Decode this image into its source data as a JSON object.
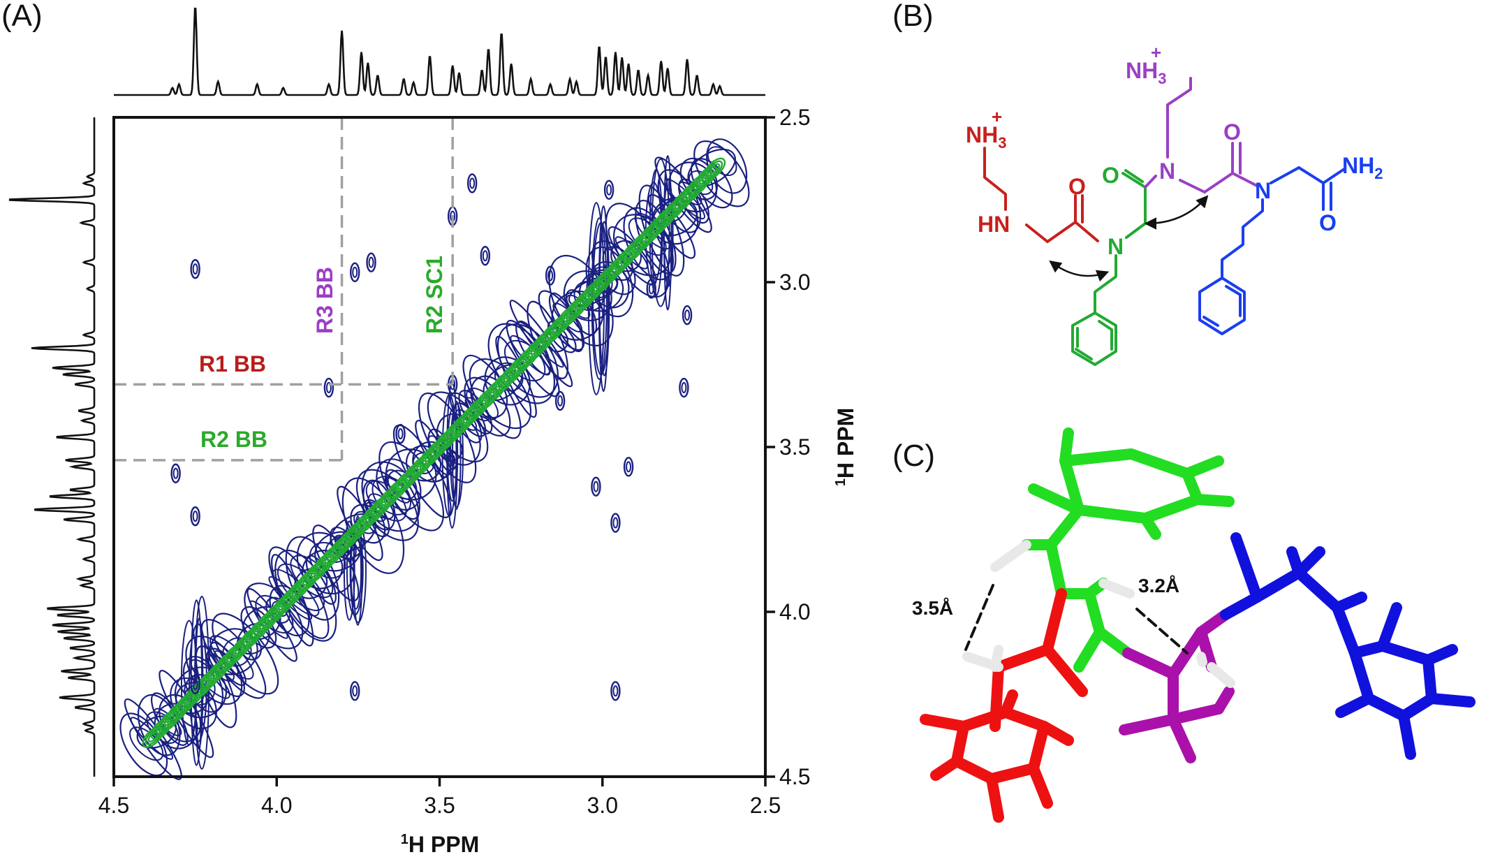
{
  "panels": {
    "a": {
      "letter": "(A)",
      "x_axis_title": {
        "sup": "1",
        "main": "H PPM"
      },
      "y_axis_title": {
        "sup": "1",
        "main": "H PPM"
      },
      "x_ticks": [
        "4.5",
        "4.0",
        "3.5",
        "3.0",
        "2.5"
      ],
      "y_ticks": [
        "2.5",
        "3.0",
        "3.5",
        "4.0",
        "4.5"
      ],
      "labels": {
        "r1_bb": "R1 BB",
        "r2_bb": "R2 BB",
        "r3_bb": "R3 BB",
        "r2_sc1": "R2 SC1"
      }
    },
    "b": {
      "letter": "(B)",
      "atoms": {
        "nh3_top": "NH",
        "nh3_top_sub": "3",
        "nh3_top_charge": "+",
        "nh3_left": "NH",
        "nh3_left_sub": "3",
        "nh3_left_charge": "+",
        "hn": "HN",
        "o1": "O",
        "o2": "O",
        "o3": "O",
        "o4": "O",
        "n1": "N",
        "n2": "N",
        "n3": "N",
        "nh2": "NH",
        "nh2_sub": "2"
      }
    },
    "c": {
      "letter": "(C)",
      "distances": {
        "left": "3.5Å",
        "right": "3.2Å"
      }
    }
  },
  "chart_data": {
    "type": "heatmap",
    "subtype": "2D NMR (TOCSY/ROESY overlay)",
    "xlabel": "1H PPM",
    "ylabel": "1H PPM",
    "xlim": [
      4.5,
      2.5
    ],
    "ylim": [
      2.5,
      4.5
    ],
    "x_ticks": [
      4.5,
      4.0,
      3.5,
      3.0,
      2.5
    ],
    "y_ticks": [
      2.5,
      3.0,
      3.5,
      4.0,
      4.5
    ],
    "series": [
      {
        "color": "#1a2080",
        "shape": "diagonal and cross peaks"
      },
      {
        "color": "#22aa33",
        "shape": "diagonal peaks"
      }
    ],
    "annotations": [
      {
        "text": "R1 BB",
        "color": "#b81c1c",
        "y": 3.31
      },
      {
        "text": "R2 BB",
        "color": "#2aaa2a",
        "y": 3.54
      },
      {
        "text": "R3 BB",
        "color": "#9b3fc4",
        "x": 3.8
      },
      {
        "text": "R2 SC1",
        "color": "#2aaa2a",
        "x": 3.46
      }
    ],
    "cross_peaks": [
      {
        "x": 4.25,
        "y": 2.96
      },
      {
        "x": 4.25,
        "y": 3.71
      },
      {
        "x": 4.25,
        "y": 4.22
      },
      {
        "x": 3.76,
        "y": 2.97
      },
      {
        "x": 3.71,
        "y": 2.94
      },
      {
        "x": 3.76,
        "y": 4.24
      },
      {
        "x": 3.46,
        "y": 2.8
      },
      {
        "x": 3.46,
        "y": 3.31
      },
      {
        "x": 3.46,
        "y": 3.54
      },
      {
        "x": 3.4,
        "y": 2.7
      },
      {
        "x": 3.36,
        "y": 2.92
      },
      {
        "x": 3.02,
        "y": 3.62
      },
      {
        "x": 2.96,
        "y": 3.73
      },
      {
        "x": 2.96,
        "y": 4.24
      },
      {
        "x": 2.75,
        "y": 3.32
      },
      {
        "x": 2.74,
        "y": 3.1
      },
      {
        "x": 2.85,
        "y": 3.02
      },
      {
        "x": 3.16,
        "y": 2.98
      },
      {
        "x": 4.31,
        "y": 3.58
      },
      {
        "x": 3.84,
        "y": 3.32
      },
      {
        "x": 2.92,
        "y": 3.56
      },
      {
        "x": 2.98,
        "y": 2.72
      },
      {
        "x": 3.13,
        "y": 3.36
      },
      {
        "x": 3.62,
        "y": 3.46
      }
    ]
  }
}
